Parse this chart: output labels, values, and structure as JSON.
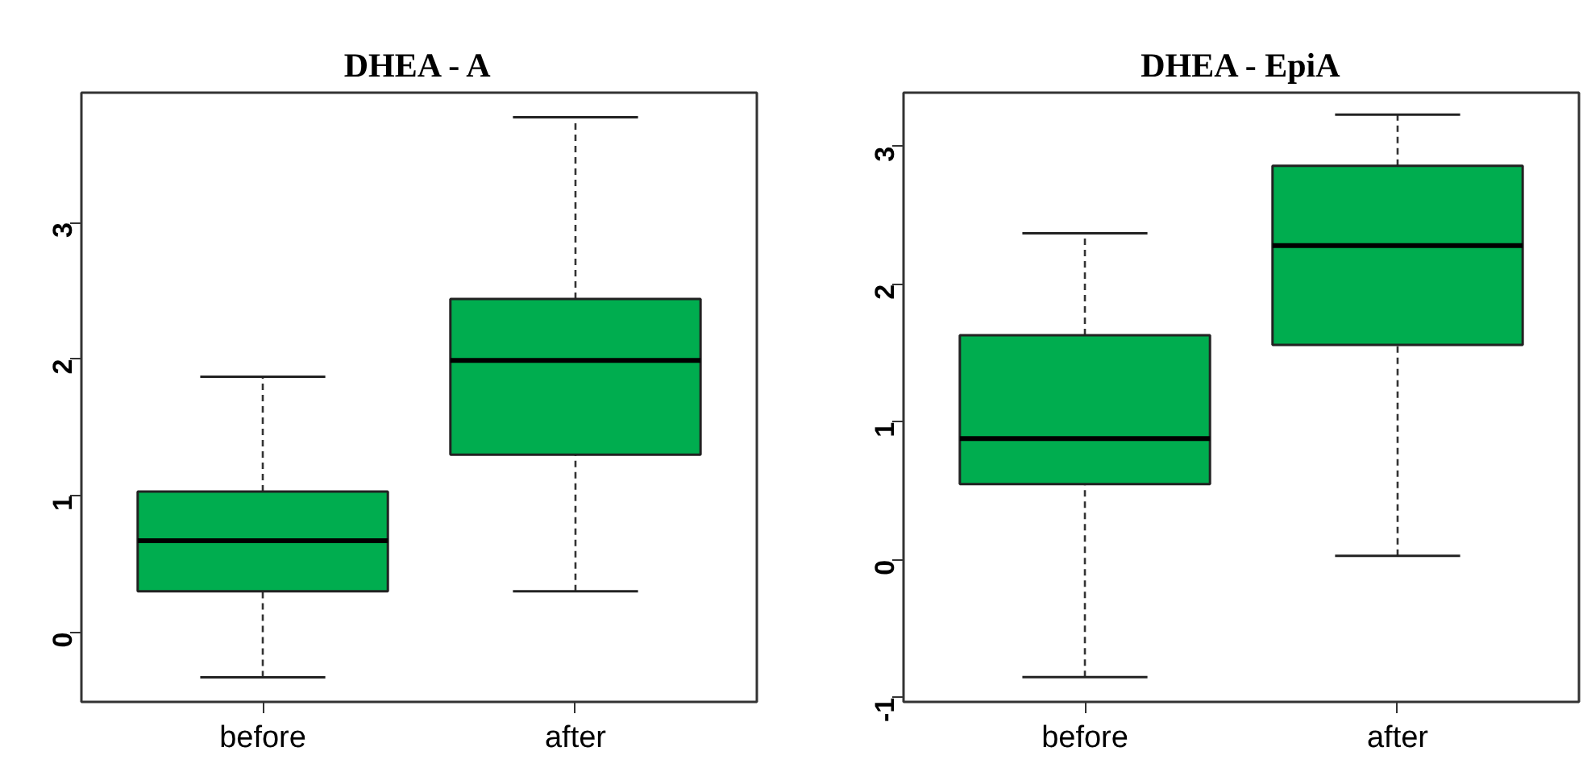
{
  "chart_data": [
    {
      "type": "box",
      "title": "DHEA - A",
      "categories": [
        "before",
        "after"
      ],
      "ylim": [
        -0.51,
        3.95
      ],
      "yticks": [
        0,
        1,
        2,
        3
      ],
      "grid": false,
      "series": [
        {
          "color": "#00ad4f",
          "boxes": [
            {
              "low": -0.33,
              "q1": 0.3,
              "median": 0.67,
              "q3": 1.03,
              "high": 1.87
            },
            {
              "low": 0.3,
              "q1": 1.3,
              "median": 1.99,
              "q3": 2.44,
              "high": 3.77
            }
          ]
        }
      ]
    },
    {
      "type": "box",
      "title": "DHEA - EpiA",
      "categories": [
        "before",
        "after"
      ],
      "ylim": [
        -1.03,
        3.39
      ],
      "yticks": [
        -1,
        0,
        1,
        2,
        3
      ],
      "grid": false,
      "series": [
        {
          "color": "#00ad4f",
          "boxes": [
            {
              "low": -0.85,
              "q1": 0.55,
              "median": 0.88,
              "q3": 1.63,
              "high": 2.37
            },
            {
              "low": 0.03,
              "q1": 1.56,
              "median": 2.28,
              "q3": 2.86,
              "high": 3.23
            }
          ]
        }
      ]
    }
  ]
}
